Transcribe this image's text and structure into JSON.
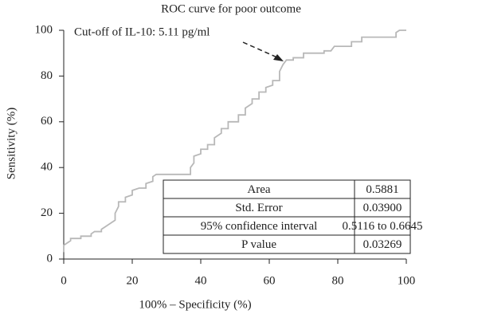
{
  "chart_data": {
    "type": "line",
    "title": "ROC curve for poor outcome",
    "xlabel": "100% – Specificity (%)",
    "ylabel": "Sensitivity (%)",
    "annotation": "Cut-off of IL-10: 5.11 pg/ml",
    "color": "#b8b8b8",
    "xlim": [
      0,
      100
    ],
    "ylim": [
      0,
      100
    ],
    "xticks": [
      0,
      20,
      40,
      60,
      80,
      100
    ],
    "yticks": [
      0,
      20,
      40,
      60,
      80,
      100
    ],
    "x": [
      0,
      0,
      1,
      2,
      2,
      5,
      5,
      8,
      8,
      9,
      11,
      11,
      12,
      13,
      14,
      15,
      15,
      16,
      16,
      18,
      18,
      20,
      20,
      22,
      24,
      24,
      26,
      26,
      27,
      37,
      37,
      38,
      38,
      40,
      40,
      42,
      42,
      44,
      44,
      46,
      46,
      48,
      48,
      51,
      51,
      53,
      53,
      55,
      55,
      57,
      57,
      59,
      59,
      61,
      61,
      63,
      63,
      64,
      65,
      67,
      67,
      70,
      70,
      76,
      76,
      78,
      79,
      84,
      84,
      87,
      87,
      97,
      97,
      98,
      100
    ],
    "y": [
      3,
      6,
      7,
      8,
      9,
      9,
      10,
      10,
      11,
      12,
      12,
      13,
      14,
      15,
      16,
      17,
      20,
      23,
      25,
      25,
      27,
      28,
      30,
      31,
      31,
      33,
      34,
      36,
      37,
      37,
      40,
      42,
      45,
      46,
      48,
      48,
      50,
      50,
      53,
      55,
      57,
      57,
      60,
      60,
      63,
      63,
      66,
      68,
      70,
      70,
      73,
      73,
      75,
      76,
      78,
      78,
      82,
      85,
      87,
      87,
      88,
      88,
      90,
      90,
      91,
      91,
      93,
      93,
      95,
      95,
      97,
      97,
      99,
      100,
      100
    ],
    "table": {
      "rows": [
        [
          "Area",
          "0.5881"
        ],
        [
          "Std. Error",
          "0.03900"
        ],
        [
          "95% confidence interval",
          "0.5116 to 0.6645"
        ],
        [
          "P value",
          "0.03269"
        ]
      ]
    }
  }
}
